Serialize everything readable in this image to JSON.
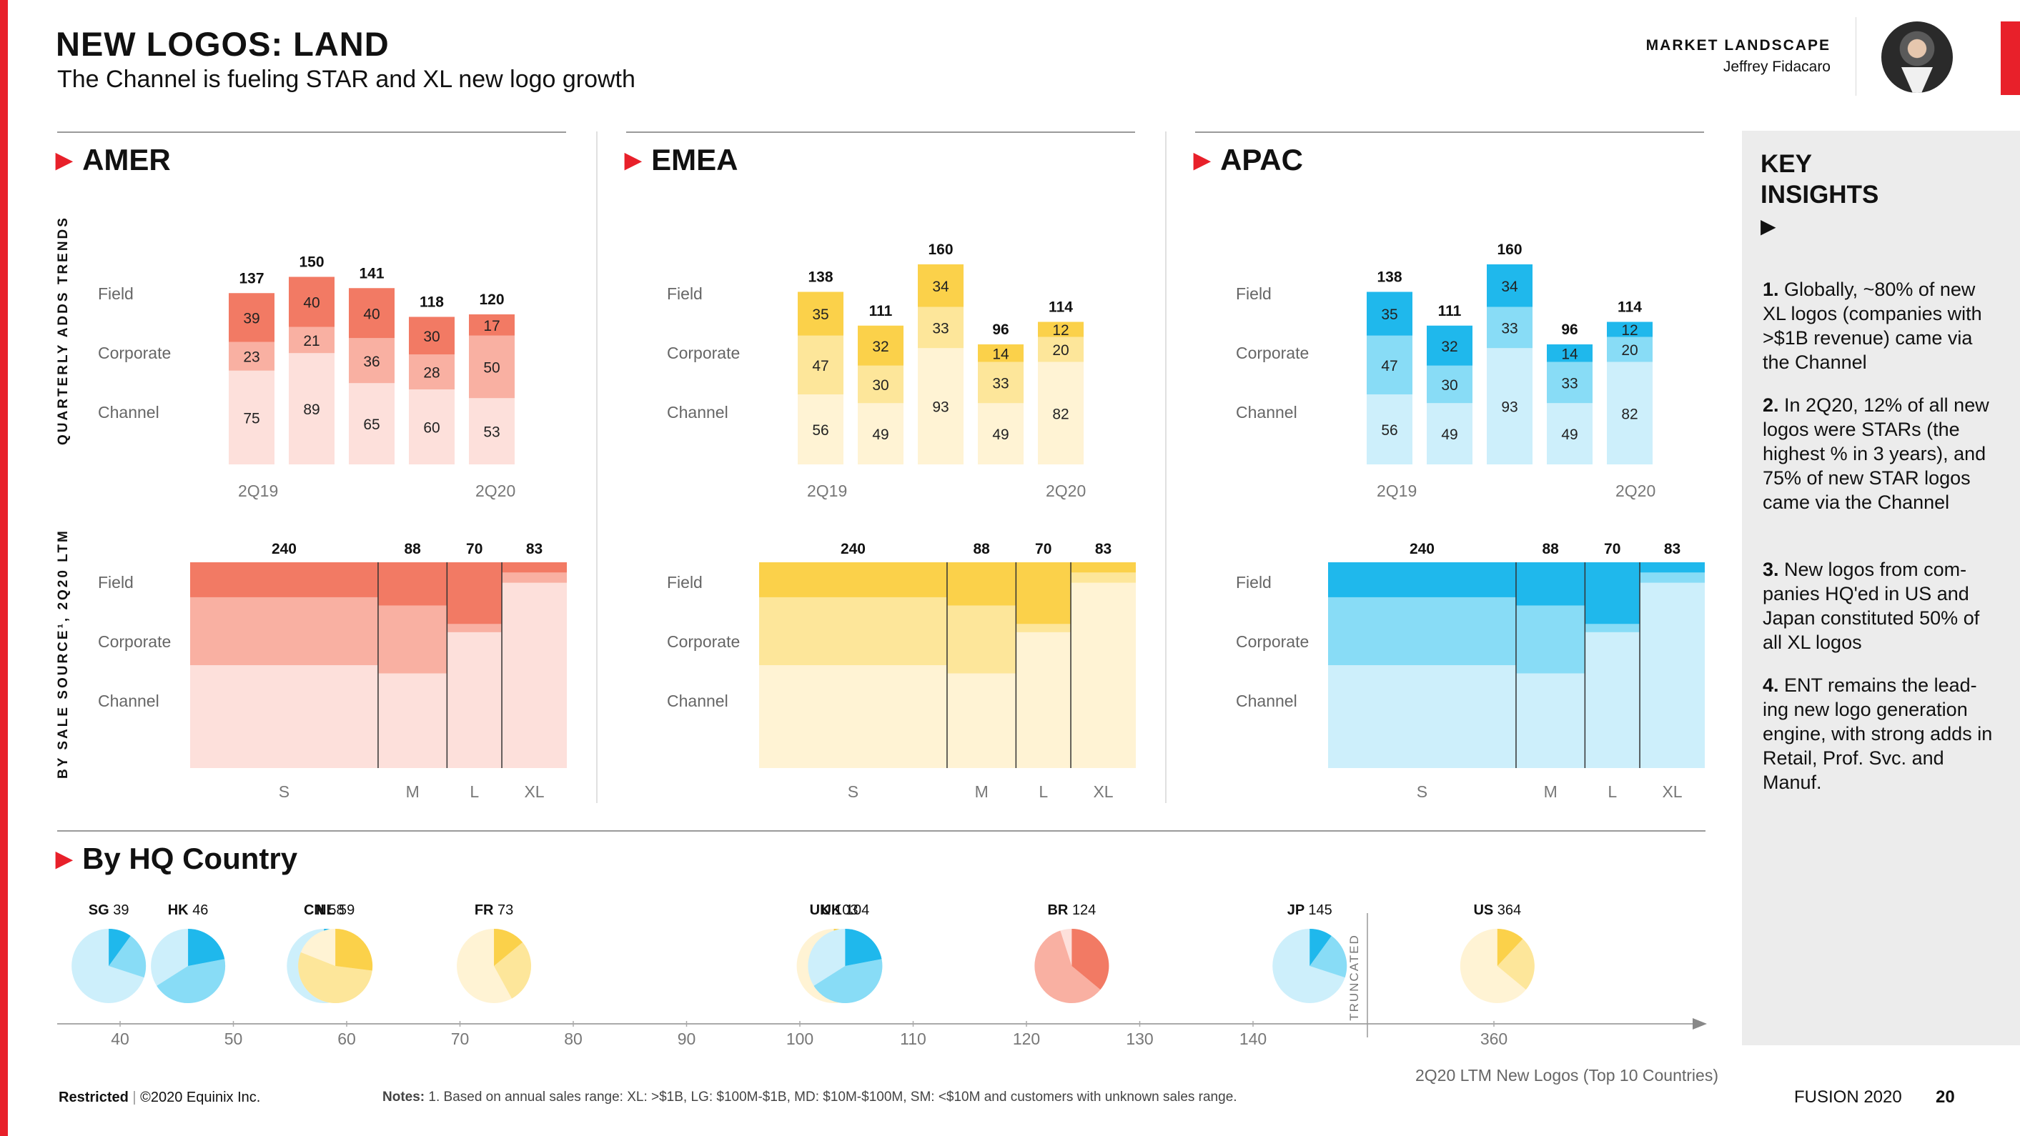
{
  "header": {
    "title": "NEW LOGOS: LAND",
    "subtitle": "The Channel is fueling STAR and XL new logo growth",
    "section_label": "MARKET LANDSCAPE",
    "author": "Jeffrey Fidacaro"
  },
  "colors": {
    "accent": "#e8202a",
    "amer": [
      "#f27a64",
      "#f9b0a2",
      "#fde0db"
    ],
    "emea": [
      "#fbd14a",
      "#fde69a",
      "#fff3d4"
    ],
    "apac": [
      "#1fb8ec",
      "#88dcf6",
      "#cdeffb"
    ]
  },
  "side_labels": {
    "quarterly": "QUARTERLY ADDS TRENDS",
    "by_source": "BY SALE SOURCE¹, 2Q20 LTM"
  },
  "row_labels": [
    "Field",
    "Corporate",
    "Channel"
  ],
  "chart_data": [
    {
      "type": "bar",
      "region": "AMER",
      "categories": [
        "2Q19",
        "",
        "",
        "",
        "2Q20"
      ],
      "quarter_labels": [
        "2Q19",
        "2Q20"
      ],
      "totals": [
        137,
        150,
        141,
        118,
        120
      ],
      "series": [
        {
          "name": "Field",
          "values": [
            39,
            40,
            40,
            30,
            17
          ]
        },
        {
          "name": "Corporate",
          "values": [
            23,
            21,
            36,
            28,
            50
          ]
        },
        {
          "name": "Channel",
          "values": [
            75,
            89,
            65,
            60,
            53
          ]
        }
      ]
    },
    {
      "type": "bar",
      "region": "EMEA",
      "categories": [
        "2Q19",
        "",
        "",
        "",
        "2Q20"
      ],
      "quarter_labels": [
        "2Q19",
        "2Q20"
      ],
      "totals": [
        138,
        111,
        160,
        96,
        114
      ],
      "series": [
        {
          "name": "Field",
          "values": [
            35,
            32,
            34,
            14,
            12
          ]
        },
        {
          "name": "Corporate",
          "values": [
            47,
            30,
            33,
            33,
            20
          ]
        },
        {
          "name": "Channel",
          "values": [
            56,
            49,
            93,
            49,
            82
          ]
        }
      ]
    },
    {
      "type": "bar",
      "region": "APAC",
      "categories": [
        "2Q19",
        "",
        "",
        "",
        "2Q20"
      ],
      "quarter_labels": [
        "2Q19",
        "2Q20"
      ],
      "totals": [
        138,
        111,
        160,
        96,
        114
      ],
      "series": [
        {
          "name": "Field",
          "values": [
            35,
            32,
            34,
            14,
            12
          ]
        },
        {
          "name": "Corporate",
          "values": [
            47,
            30,
            33,
            33,
            20
          ]
        },
        {
          "name": "Channel",
          "values": [
            56,
            49,
            93,
            49,
            82
          ]
        }
      ]
    },
    {
      "type": "marimekko",
      "region": "AMER",
      "categories": [
        "S",
        "M",
        "L",
        "XL"
      ],
      "widths": [
        240,
        88,
        70,
        83
      ],
      "shares": {
        "Field": [
          0.17,
          0.21,
          0.3,
          0.05
        ],
        "Corporate": [
          0.33,
          0.33,
          0.04,
          0.05
        ],
        "Channel": [
          0.5,
          0.46,
          0.66,
          0.9
        ]
      }
    },
    {
      "type": "marimekko",
      "region": "EMEA",
      "categories": [
        "S",
        "M",
        "L",
        "XL"
      ],
      "widths": [
        240,
        88,
        70,
        83
      ],
      "shares": {
        "Field": [
          0.17,
          0.21,
          0.3,
          0.05
        ],
        "Corporate": [
          0.33,
          0.33,
          0.04,
          0.05
        ],
        "Channel": [
          0.5,
          0.46,
          0.66,
          0.9
        ]
      }
    },
    {
      "type": "marimekko",
      "region": "APAC",
      "categories": [
        "S",
        "M",
        "L",
        "XL"
      ],
      "widths": [
        240,
        88,
        70,
        83
      ],
      "shares": {
        "Field": [
          0.17,
          0.21,
          0.3,
          0.05
        ],
        "Corporate": [
          0.33,
          0.33,
          0.04,
          0.05
        ],
        "Channel": [
          0.5,
          0.46,
          0.66,
          0.9
        ]
      }
    },
    {
      "type": "scatter",
      "title": "By HQ Country",
      "caption": "2Q20 LTM New Logos (Top 10 Countries)",
      "truncated_label": "TRUNCATED",
      "x_ticks": [
        40,
        50,
        60,
        70,
        80,
        90,
        100,
        110,
        120,
        130,
        140,
        360
      ],
      "points": [
        {
          "code": "SG",
          "value": 39,
          "region": "apac",
          "share": 0.1
        },
        {
          "code": "HK",
          "value": 46,
          "region": "apac",
          "share": 0.22
        },
        {
          "code": "CN",
          "value": 58,
          "region": "apac",
          "share": 0.1
        },
        {
          "code": "NL",
          "value": 59,
          "region": "emea",
          "share": 0.27
        },
        {
          "code": "FR",
          "value": 73,
          "region": "emea",
          "share": 0.14
        },
        {
          "code": "UK",
          "value": 103,
          "region": "emea",
          "share": 0.08
        },
        {
          "code": "UK",
          "value": 104,
          "region": "apac",
          "share": 0.22
        },
        {
          "code": "BR",
          "value": 124,
          "region": "amer",
          "share": 0.36
        },
        {
          "code": "JP",
          "value": 145,
          "region": "apac",
          "share": 0.1
        },
        {
          "code": "US",
          "value": 364,
          "region": "emea",
          "share": 0.12
        }
      ]
    }
  ],
  "key_insights": {
    "title": "KEY INSIGHTS",
    "items": [
      {
        "num": "1.",
        "text": " Globally, ~80% of new XL logos (companies with >$1B revenue) came via the Channel"
      },
      {
        "num": "2.",
        "text": " In 2Q20, 12% of all new logos were STARs (the highest % in 3 years), and 75% of new STAR logos came via the Channel"
      },
      {
        "num": "3.",
        "text": " New logos from com-panies HQ'ed in US and Japan constituted 50% of all XL logos"
      },
      {
        "num": "4.",
        "text": " ENT remains the lead-ing new logo generation engine, with strong adds in Retail, Prof. Svc. and Manuf."
      }
    ]
  },
  "footer": {
    "restricted": "Restricted",
    "copyright": "©2020 Equinix Inc.",
    "notes_label": "Notes:",
    "notes": " 1. Based on annual sales range: XL: >$1B, LG: $100M-$1B, MD: $10M-$100M, SM: <$10M and customers with unknown sales range.",
    "event": "FUSION 2020",
    "page": "20"
  }
}
